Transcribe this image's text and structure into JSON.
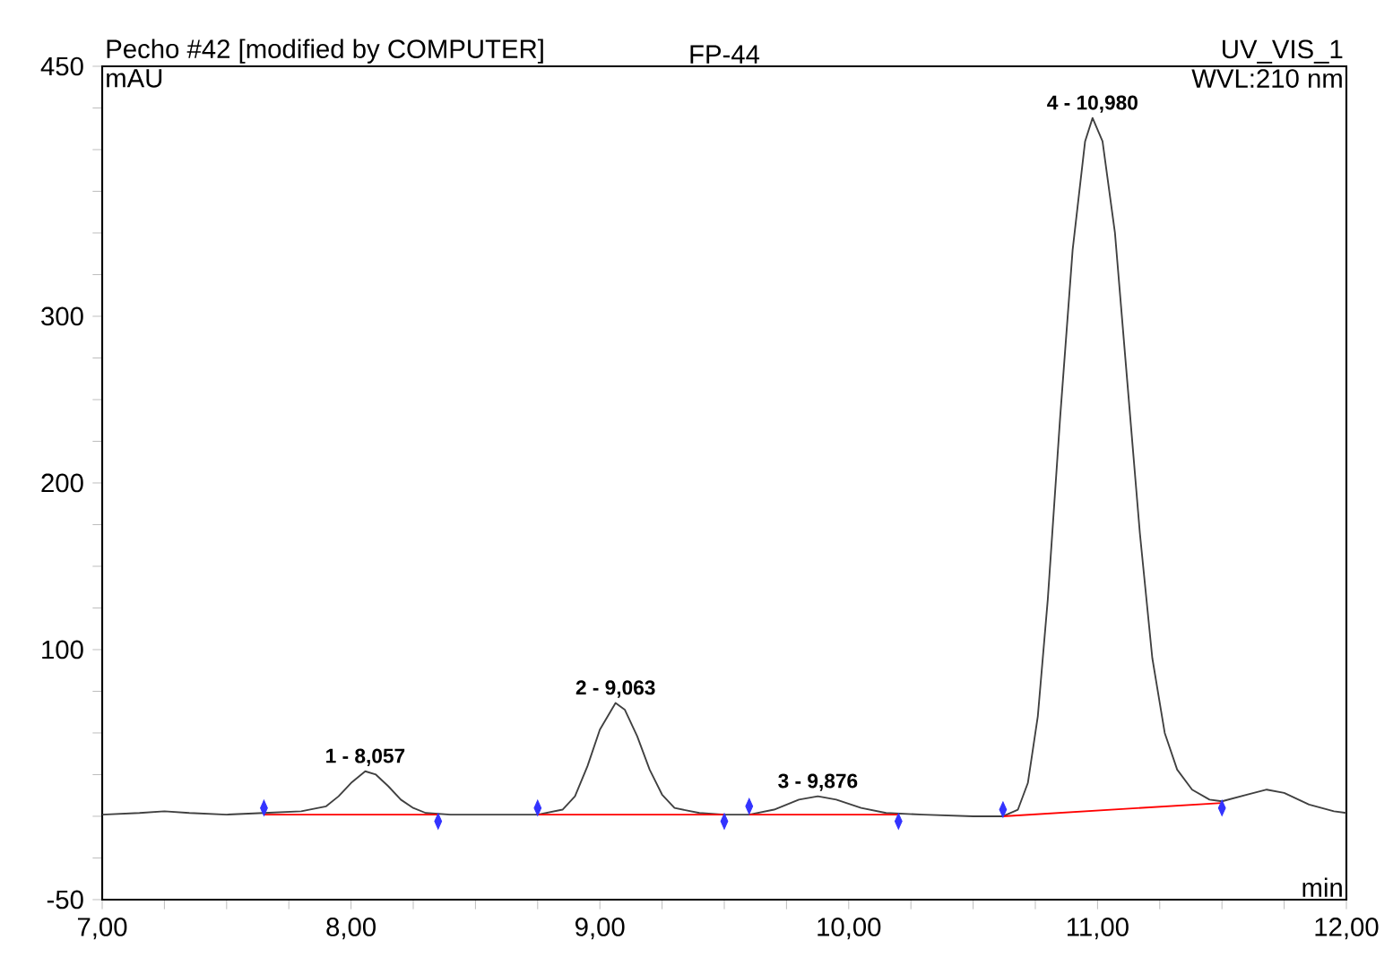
{
  "chart_data": {
    "type": "line",
    "title": "Pecho #42 [modified by COMPUTER]",
    "annotations": [
      "FP-44",
      "UV_VIS_1",
      "WVL:210 nm",
      {
        "text": "1 - 8,057",
        "x": 8.057,
        "y": 27
      },
      {
        "text": "2 - 9,063",
        "x": 9.063,
        "y": 68
      },
      {
        "text": "3 - 9,876",
        "x": 9.876,
        "y": 12
      },
      {
        "text": "4 - 10,980",
        "x": 10.98,
        "y": 419
      }
    ],
    "xlabel": "min",
    "ylabel": "mAU",
    "xlim": [
      7,
      12
    ],
    "ylim": [
      -50,
      450
    ],
    "xticks": [
      {
        "value": 7,
        "label": "7,00"
      },
      {
        "value": 7.25,
        "label": null
      },
      {
        "value": 7.5,
        "label": null
      },
      {
        "value": 7.75,
        "label": null
      },
      {
        "value": 8,
        "label": "8,00"
      },
      {
        "value": 8.25,
        "label": null
      },
      {
        "value": 8.5,
        "label": null
      },
      {
        "value": 8.75,
        "label": null
      },
      {
        "value": 9,
        "label": "9,00"
      },
      {
        "value": 9.25,
        "label": null
      },
      {
        "value": 9.5,
        "label": null
      },
      {
        "value": 9.75,
        "label": null
      },
      {
        "value": 10,
        "label": "10,00"
      },
      {
        "value": 10.25,
        "label": null
      },
      {
        "value": 10.5,
        "label": null
      },
      {
        "value": 10.75,
        "label": null
      },
      {
        "value": 11,
        "label": "11,00"
      },
      {
        "value": 11.25,
        "label": null
      },
      {
        "value": 11.5,
        "label": null
      },
      {
        "value": 11.75,
        "label": null
      },
      {
        "value": 12,
        "label": "12,00"
      }
    ],
    "yticks": [
      -50,
      {
        "value": -25,
        "label": null
      },
      {
        "value": 0,
        "label": null
      },
      {
        "value": 25,
        "label": null
      },
      {
        "value": 50,
        "label": null
      },
      {
        "value": 75,
        "label": null
      },
      100,
      {
        "value": 125,
        "label": null
      },
      {
        "value": 150,
        "label": null
      },
      {
        "value": 175,
        "label": null
      },
      200,
      {
        "value": 225,
        "label": null
      },
      {
        "value": 250,
        "label": null
      },
      {
        "value": 275,
        "label": null
      },
      300,
      {
        "value": 325,
        "label": null
      },
      {
        "value": 350,
        "label": null
      },
      {
        "value": 375,
        "label": null
      },
      {
        "value": 400,
        "label": null
      },
      {
        "value": 425,
        "label": null
      },
      450
    ],
    "line_style": "solid",
    "series": [
      {
        "type": "line",
        "color": "#404040",
        "x": [
          7.0,
          7.15,
          7.25,
          7.35,
          7.5,
          7.65,
          7.8,
          7.9,
          7.95,
          8.0,
          8.057,
          8.1,
          8.15,
          8.2,
          8.25,
          8.3,
          8.4,
          8.6,
          8.75,
          8.85,
          8.9,
          8.95,
          9.0,
          9.063,
          9.1,
          9.15,
          9.2,
          9.25,
          9.3,
          9.4,
          9.5,
          9.6,
          9.7,
          9.8,
          9.876,
          9.95,
          10.05,
          10.15,
          10.3,
          10.5,
          10.62,
          10.68,
          10.72,
          10.76,
          10.8,
          10.85,
          10.9,
          10.95,
          10.98,
          11.02,
          11.07,
          11.12,
          11.17,
          11.22,
          11.27,
          11.32,
          11.38,
          11.45,
          11.5,
          11.6,
          11.68,
          11.75,
          11.85,
          11.95,
          12.0
        ],
        "values": [
          1,
          2,
          3,
          2,
          1,
          2,
          3,
          6,
          12,
          20,
          27,
          25,
          18,
          10,
          5,
          2,
          1,
          1,
          1,
          4,
          12,
          30,
          52,
          68,
          64,
          48,
          28,
          13,
          5,
          2,
          1,
          1,
          4,
          10,
          12,
          10,
          5,
          2,
          1,
          0,
          0,
          4,
          20,
          60,
          130,
          240,
          340,
          405,
          419,
          405,
          350,
          260,
          170,
          95,
          50,
          28,
          16,
          10,
          9,
          13,
          16,
          14,
          7,
          3,
          2
        ]
      },
      {
        "type": "line",
        "color": "#ff0000",
        "x": [
          7.65,
          8.35
        ],
        "values": [
          1,
          1
        ]
      },
      {
        "type": "line",
        "color": "#ff0000",
        "x": [
          8.75,
          9.5
        ],
        "values": [
          1,
          1
        ]
      },
      {
        "type": "line",
        "color": "#ff0000",
        "x": [
          9.6,
          10.2
        ],
        "values": [
          1,
          1
        ]
      },
      {
        "type": "line",
        "color": "#ff0000",
        "x": [
          10.62,
          11.5
        ],
        "values": [
          0,
          8
        ]
      },
      {
        "type": "scatter",
        "color": "#3333ff",
        "marker": "diamond",
        "x": [
          7.65,
          8.35,
          8.75,
          9.5,
          9.6,
          10.2,
          10.62,
          11.5
        ],
        "values": [
          5,
          -3,
          5,
          -3,
          6,
          -3,
          4,
          5
        ]
      }
    ]
  }
}
